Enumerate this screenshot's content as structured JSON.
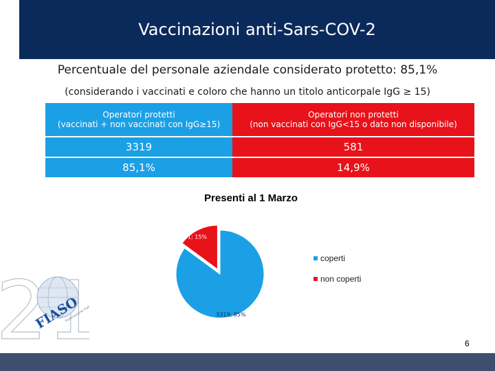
{
  "slide": {
    "title": "Vaccinazioni anti-Sars-COV-2",
    "subtitle": "Percentuale del personale aziendale considerato protetto: 85,1%",
    "note": "(considerando i vaccinati e coloro che hanno un titolo anticorpale IgG ≥ 15)",
    "page_number": "6"
  },
  "table": {
    "header_left_line1": "Operatori protetti",
    "header_left_line2": "(vaccinati + non vaccinati con  IgG≥15)",
    "header_right_line1": "Operatori non protetti",
    "header_right_line2": "(non vaccinati con IgG<15 o dato non disponibile)",
    "count_left": "3319",
    "count_right": "581",
    "pct_left": "85,1%",
    "pct_right": "14,9%"
  },
  "logo": {
    "number": "21",
    "text": "FIASO",
    "tagline": "Federazione Italiana Aziende Sanitarie e Ospedaliere"
  },
  "colors": {
    "title_bar": "#0b2a5c",
    "protected": "#1ba0e6",
    "unprotected": "#e8121a",
    "bottom_bar": "#3d4f6e"
  },
  "chart_data": {
    "type": "pie",
    "title": "Presenti al 1 Marzo",
    "slices": [
      {
        "name": "coperti",
        "value": 3319,
        "label": "3319; 85%",
        "color": "#1ba0e6"
      },
      {
        "name": "non coperti",
        "value": 581,
        "label": "581; 15%",
        "color": "#e8121a"
      }
    ],
    "legend_position": "right"
  }
}
